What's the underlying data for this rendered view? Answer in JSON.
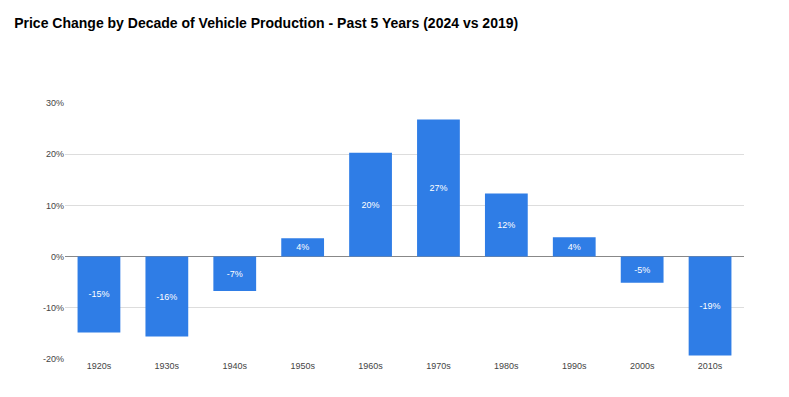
{
  "chart_data": {
    "type": "bar",
    "title": "Price Change by Decade of Vehicle Production - Past 5 Years (2024 vs 2019)",
    "categories": [
      "1920s",
      "1930s",
      "1940s",
      "1950s",
      "1960s",
      "1970s",
      "1980s",
      "1990s",
      "2000s",
      "2010s"
    ],
    "values": [
      -14.8,
      -15.6,
      -6.7,
      3.6,
      20.3,
      26.8,
      12.3,
      3.8,
      -5.1,
      -19.3
    ],
    "value_labels": [
      "-15%",
      "-16%",
      "-7%",
      "4%",
      "20%",
      "27%",
      "12%",
      "4%",
      "-5%",
      "-19%"
    ],
    "color": "#2f7de6",
    "ylim": [
      -20,
      30
    ],
    "yticks": [
      {
        "value": -20,
        "label": "-20%"
      },
      {
        "value": -10,
        "label": "-10%"
      },
      {
        "value": 0,
        "label": "0%"
      },
      {
        "value": 10,
        "label": "10%"
      },
      {
        "value": 20,
        "label": "20%"
      },
      {
        "value": 30,
        "label": "30%"
      }
    ],
    "grid": true,
    "data_labels": true
  }
}
